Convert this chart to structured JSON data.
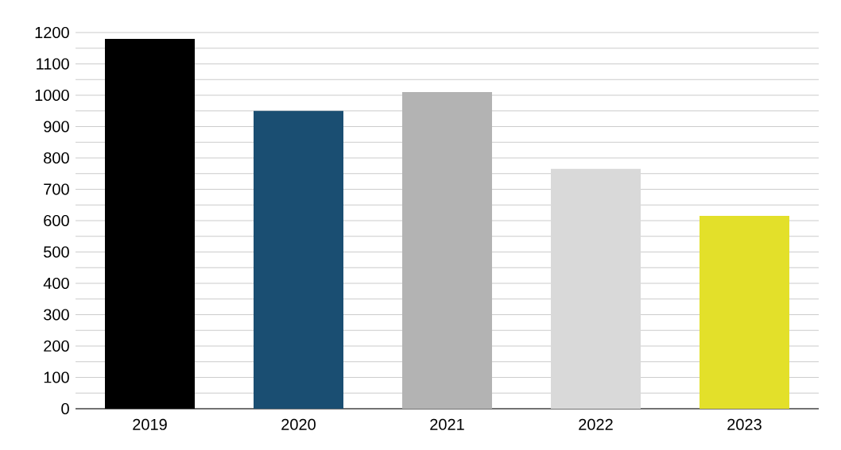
{
  "chart_data": {
    "type": "bar",
    "categories": [
      "2019",
      "2020",
      "2021",
      "2022",
      "2023"
    ],
    "values": [
      1180,
      950,
      1010,
      765,
      615
    ],
    "colors": [
      "#000000",
      "#1a4e72",
      "#b3b3b3",
      "#d9d9d9",
      "#e3e02a"
    ],
    "ylim": [
      0,
      1200
    ],
    "yticks": [
      0,
      {
        "value": 50,
        "label": null
      },
      100,
      {
        "value": 150,
        "label": null
      },
      200,
      {
        "value": 250,
        "label": null
      },
      300,
      {
        "value": 350,
        "label": null
      },
      400,
      {
        "value": 450,
        "label": null
      },
      500,
      {
        "value": 550,
        "label": null
      },
      600,
      {
        "value": 650,
        "label": null
      },
      700,
      {
        "value": 750,
        "label": null
      },
      800,
      {
        "value": 850,
        "label": null
      },
      900,
      {
        "value": 950,
        "label": null
      },
      1000,
      {
        "value": 1050,
        "label": null
      },
      1100,
      {
        "value": 1150,
        "label": null
      },
      1200
    ],
    "grid": "y"
  }
}
